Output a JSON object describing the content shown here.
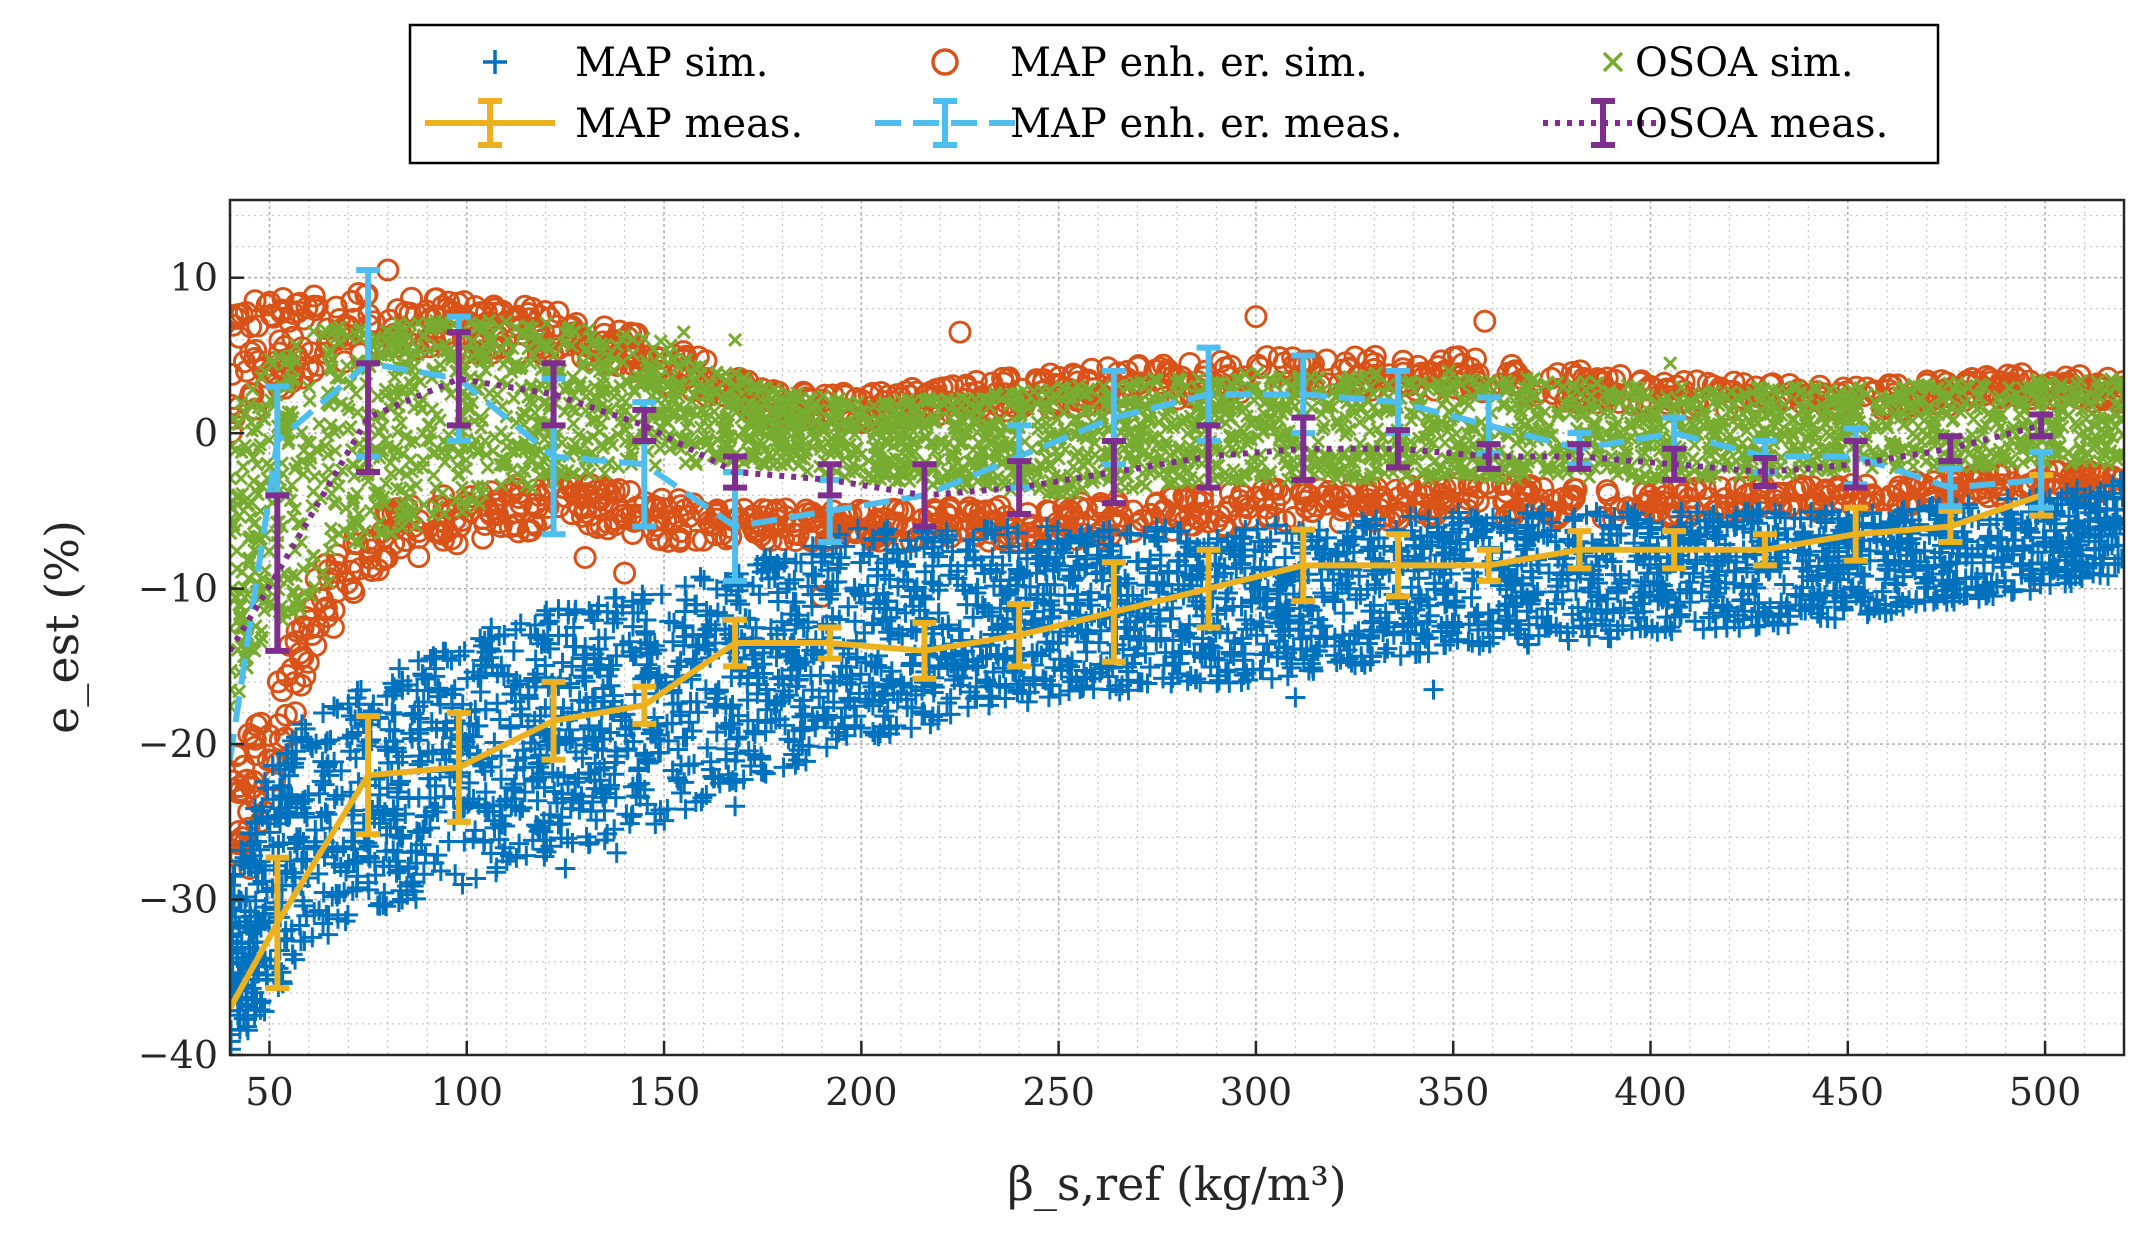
{
  "chart_data": {
    "type": "scatter",
    "xlabel": "β_s,ref (kg/m³)",
    "ylabel": "e_est (%)",
    "xlim": [
      40,
      520
    ],
    "ylim": [
      -40,
      15
    ],
    "x_ticks": [
      50,
      100,
      150,
      200,
      250,
      300,
      350,
      400,
      450,
      500
    ],
    "y_ticks": [
      10,
      0,
      -10,
      -20,
      -30,
      -40
    ],
    "grid": true,
    "legend_position": "top-center",
    "legend": [
      {
        "key": "map_sim",
        "label": "MAP sim.",
        "marker": "plus",
        "color": "#0072BD"
      },
      {
        "key": "map_enh_sim",
        "label": "MAP enh. er. sim.",
        "marker": "circle",
        "color": "#D95319"
      },
      {
        "key": "osoa_sim",
        "label": "OSOA sim.",
        "marker": "x",
        "color": "#77AC30"
      },
      {
        "key": "map_meas",
        "label": "MAP meas.",
        "marker": "errorbar-solid",
        "color": "#EDB120"
      },
      {
        "key": "map_enh_meas",
        "label": "MAP enh. er. meas.",
        "marker": "errorbar-dashed",
        "color": "#4DBEEE"
      },
      {
        "key": "osoa_meas",
        "label": "OSOA meas.",
        "marker": "errorbar-dotted",
        "color": "#7E2F8E"
      }
    ],
    "scatter_bands": [
      {
        "name": "MAP enh. er. sim.",
        "color": "#D95319",
        "marker": "circle",
        "band": [
          [
            40,
            -29,
            8
          ],
          [
            50,
            -24,
            9
          ],
          [
            60,
            -15,
            9
          ],
          [
            75,
            -9,
            9
          ],
          [
            100,
            -7,
            8.5
          ],
          [
            125,
            -6,
            8
          ],
          [
            150,
            -7,
            6
          ],
          [
            175,
            -7,
            3
          ],
          [
            200,
            -7,
            2.5
          ],
          [
            250,
            -7,
            4
          ],
          [
            300,
            -6,
            5
          ],
          [
            350,
            -5.5,
            5
          ],
          [
            400,
            -5.5,
            3.5
          ],
          [
            450,
            -5,
            3
          ],
          [
            500,
            -4,
            4
          ],
          [
            520,
            -4,
            3.5
          ]
        ],
        "outliers": [
          [
            80,
            10.5
          ],
          [
            130,
            -8
          ],
          [
            140,
            -9
          ],
          [
            190,
            -10.5
          ],
          [
            225,
            6.5
          ],
          [
            300,
            7.5
          ],
          [
            358,
            7.2
          ],
          [
            45,
            -28
          ]
        ]
      },
      {
        "name": "OSOA sim.",
        "color": "#77AC30",
        "marker": "x",
        "band": [
          [
            40,
            -18,
            1
          ],
          [
            50,
            -13,
            5
          ],
          [
            60,
            -11,
            7
          ],
          [
            75,
            -7,
            7
          ],
          [
            100,
            -5,
            7.5
          ],
          [
            125,
            -3,
            7
          ],
          [
            150,
            -2,
            6
          ],
          [
            175,
            -2,
            3
          ],
          [
            200,
            -3,
            2
          ],
          [
            250,
            -4,
            3
          ],
          [
            300,
            -3,
            4
          ],
          [
            350,
            -3,
            4
          ],
          [
            400,
            -3,
            3
          ],
          [
            450,
            -2.5,
            3
          ],
          [
            500,
            -2,
            3.5
          ],
          [
            520,
            -2,
            3.5
          ]
        ],
        "outliers": [
          [
            155,
            6.5
          ],
          [
            168,
            6
          ],
          [
            405,
            4.5
          ]
        ]
      },
      {
        "name": "MAP sim.",
        "color": "#0072BD",
        "marker": "plus",
        "band": [
          [
            40,
            -40,
            -29
          ],
          [
            50,
            -37,
            -21
          ],
          [
            60,
            -33,
            -18
          ],
          [
            75,
            -31,
            -16
          ],
          [
            100,
            -29,
            -13
          ],
          [
            125,
            -27,
            -11
          ],
          [
            150,
            -25,
            -10
          ],
          [
            175,
            -22,
            -8
          ],
          [
            200,
            -20,
            -6
          ],
          [
            250,
            -17,
            -6
          ],
          [
            300,
            -16,
            -6
          ],
          [
            350,
            -14,
            -5
          ],
          [
            400,
            -13,
            -5
          ],
          [
            450,
            -12,
            -5
          ],
          [
            500,
            -10,
            -4
          ],
          [
            520,
            -9,
            -3
          ]
        ],
        "outliers": [
          [
            125,
            -28
          ],
          [
            138,
            -27
          ],
          [
            168,
            -24
          ],
          [
            310,
            -17
          ],
          [
            345,
            -16.5
          ]
        ]
      }
    ],
    "series": [
      {
        "name": "MAP meas.",
        "color": "#EDB120",
        "line": "solid",
        "x": [
          40,
          52,
          75,
          98,
          122,
          145,
          168,
          192,
          216,
          240,
          264,
          288,
          312,
          336,
          359,
          382,
          406,
          429,
          452,
          476,
          499
        ],
        "y": [
          -37,
          -31.5,
          -22,
          -21.5,
          -18.5,
          -17.5,
          -13.5,
          -13.5,
          -14,
          -13,
          -11.5,
          -10,
          -8.5,
          -8.5,
          -8.5,
          -7.5,
          -7.5,
          -7.5,
          -6.5,
          -6,
          -4
        ],
        "err": [
          null,
          4.2,
          3.8,
          3.5,
          2.5,
          1.2,
          1.5,
          1,
          1.8,
          2,
          3.2,
          2.5,
          2.3,
          2,
          1,
          1.2,
          1.2,
          1,
          1.7,
          1,
          1.3
        ]
      },
      {
        "name": "MAP enh. er. meas.",
        "color": "#4DBEEE",
        "line": "dashed",
        "x": [
          40,
          52,
          75,
          98,
          122,
          145,
          168,
          192,
          216,
          240,
          264,
          288,
          312,
          336,
          359,
          382,
          406,
          429,
          452,
          476,
          499
        ],
        "y": [
          -21,
          -0.5,
          4.5,
          3.5,
          -1.5,
          -2,
          -6,
          -5,
          -4,
          -1.5,
          1,
          2.5,
          2.5,
          2,
          0.5,
          -1,
          0,
          -1.5,
          -1.5,
          -3.5,
          -3
        ],
        "err": [
          null,
          3.5,
          6,
          4,
          5,
          4,
          3.5,
          2,
          2,
          2,
          3,
          3,
          2.5,
          2,
          1.8,
          1,
          1,
          1,
          1.8,
          1.2,
          1.8
        ]
      },
      {
        "name": "OSOA meas.",
        "color": "#7E2F8E",
        "line": "dotted",
        "x": [
          40,
          52,
          75,
          98,
          122,
          145,
          168,
          192,
          216,
          240,
          264,
          288,
          312,
          336,
          359,
          382,
          406,
          429,
          452,
          476,
          499
        ],
        "y": [
          -14,
          -9,
          1,
          3.5,
          2.5,
          0.5,
          -2.5,
          -3,
          -4,
          -3.5,
          -2.5,
          -1.5,
          -1,
          -1,
          -1.5,
          -1.5,
          -2,
          -2.5,
          -2,
          -1,
          0.5
        ],
        "err": [
          null,
          5,
          3.5,
          3,
          2,
          1,
          1,
          1,
          2,
          1.7,
          2,
          2,
          2,
          1.2,
          0.8,
          0.8,
          1,
          0.9,
          1.5,
          0.8,
          0.7
        ]
      }
    ]
  }
}
